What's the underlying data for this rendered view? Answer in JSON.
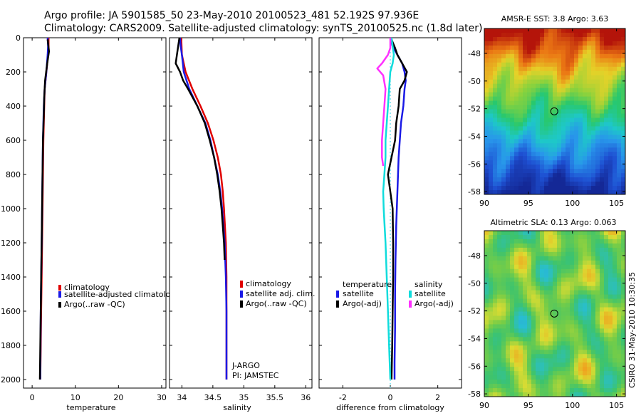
{
  "header": {
    "line1": "Argo profile: JA 5901585_50 23-May-2010 20100523_481 52.192S 97.936E",
    "line2": "Climatology: CARS2009. Satellite-adjusted climatology: synTS_20100525.nc (1.8d later)"
  },
  "credit": "CSIRO 31-May-2010 10:30:35",
  "chart_data": [
    {
      "type": "line",
      "id": "temperature",
      "xlabel": "temperature",
      "ylabel": "",
      "xlim": [
        -2,
        31
      ],
      "ylim": [
        2050,
        0
      ],
      "xticks": [
        0,
        10,
        20,
        30
      ],
      "yticks": [
        0,
        200,
        400,
        600,
        800,
        1000,
        1200,
        1400,
        1600,
        1800,
        2000
      ],
      "legend": [
        "climatology",
        "satellite-adjusted climatology",
        "Argo(..raw -QC)"
      ],
      "colors": [
        "#e00000",
        "#1a1ae6",
        "#000000"
      ],
      "series": [
        {
          "name": "climatology",
          "color": "#e00000",
          "depth": [
            0,
            50,
            100,
            200,
            300,
            400,
            600,
            800,
            1000,
            1200,
            1400,
            1600,
            1800,
            2000
          ],
          "values": [
            3.8,
            3.8,
            3.7,
            3.3,
            2.9,
            2.8,
            2.6,
            2.5,
            2.4,
            2.3,
            2.2,
            2.1,
            2.0,
            1.9
          ]
        },
        {
          "name": "satellite-adjusted climatology",
          "color": "#1a1ae6",
          "depth": [
            0,
            50,
            100,
            200,
            300,
            400,
            600,
            800,
            1000,
            1200,
            1400,
            1600,
            1800,
            2000
          ],
          "values": [
            3.6,
            3.7,
            3.6,
            3.3,
            2.9,
            2.7,
            2.5,
            2.4,
            2.3,
            2.2,
            2.1,
            2.0,
            1.95,
            1.9
          ]
        },
        {
          "name": "Argo(..raw -QC)",
          "color": "#000000",
          "depth": [
            10,
            80,
            150,
            250,
            350,
            450,
            600,
            800,
            1000,
            1200,
            1400,
            1600,
            1800,
            2000
          ],
          "values": [
            3.6,
            3.9,
            3.5,
            3.0,
            2.8,
            2.7,
            2.5,
            2.4,
            2.3,
            2.2,
            2.1,
            2.0,
            1.9,
            1.8
          ]
        }
      ]
    },
    {
      "type": "line",
      "id": "salinity",
      "xlabel": "salinity",
      "xlim": [
        33.8,
        36.1
      ],
      "ylim": [
        2050,
        0
      ],
      "xticks": [
        34,
        34.5,
        35,
        35.5,
        36
      ],
      "legend": [
        "climatology",
        "satellite adj. clim.",
        "Argo(..raw -QC)"
      ],
      "colors": [
        "#e00000",
        "#1a1ae6",
        "#000000"
      ],
      "annotations": [
        "J-ARGO",
        "PI: JAMSTEC"
      ],
      "series": [
        {
          "name": "climatology",
          "color": "#e00000",
          "depth": [
            0,
            100,
            200,
            300,
            400,
            500,
            600,
            700,
            800,
            900,
            1000,
            1200,
            1400,
            1600,
            1800,
            2000
          ],
          "values": [
            33.99,
            34.0,
            34.06,
            34.17,
            34.3,
            34.42,
            34.51,
            34.58,
            34.63,
            34.66,
            34.68,
            34.71,
            34.72,
            34.72,
            34.72,
            34.72
          ]
        },
        {
          "name": "satellite adj. clim.",
          "color": "#1a1ae6",
          "depth": [
            0,
            50,
            100,
            200,
            300,
            400,
            500,
            600,
            700,
            800,
            900,
            1000,
            1200,
            1400,
            1600,
            1800,
            2000
          ],
          "values": [
            33.97,
            33.98,
            34.0,
            34.03,
            34.12,
            34.25,
            34.38,
            34.46,
            34.52,
            34.58,
            34.62,
            34.65,
            34.69,
            34.71,
            34.72,
            34.72,
            34.72
          ]
        },
        {
          "name": "Argo(..raw -QC)",
          "color": "#000000",
          "depth": [
            0,
            100,
            150,
            200,
            250,
            300,
            400,
            500,
            600,
            700,
            800,
            900,
            1000,
            1100,
            1200,
            1300
          ],
          "values": [
            33.96,
            33.92,
            33.9,
            33.97,
            34.02,
            34.1,
            34.25,
            34.37,
            34.45,
            34.52,
            34.57,
            34.61,
            34.64,
            34.66,
            34.68,
            34.69
          ]
        }
      ]
    },
    {
      "type": "line",
      "id": "difference",
      "xlabel": "difference from climatology",
      "xlim": [
        -3.0,
        3.0
      ],
      "ylim": [
        2050,
        0
      ],
      "xticks": [
        -2,
        0,
        2
      ],
      "legend_left_title": "temperature",
      "legend_right_title": "salinity",
      "legend_left": [
        "satellite",
        "Argo(-adj)"
      ],
      "legend_right": [
        "satellite",
        "Argo(-adj)"
      ],
      "series": [
        {
          "name": "temperature satellite",
          "color": "#1a1ae6",
          "depth": [
            0,
            50,
            100,
            150,
            200,
            250,
            300,
            400,
            500,
            700,
            900,
            1100,
            1300,
            1500,
            1700,
            1900,
            2000
          ],
          "values": [
            0.0,
            0.1,
            0.3,
            0.5,
            0.6,
            0.65,
            0.6,
            0.55,
            0.45,
            0.35,
            0.3,
            0.25,
            0.22,
            0.2,
            0.2,
            0.18,
            0.18
          ]
        },
        {
          "name": "temperature Argo(-adj)",
          "color": "#000000",
          "depth": [
            10,
            60,
            100,
            150,
            200,
            250,
            300,
            400,
            500,
            600,
            700,
            800,
            900,
            1000,
            1200,
            1400,
            1600,
            1800,
            2000
          ],
          "values": [
            0.05,
            0.2,
            0.3,
            0.5,
            0.7,
            0.6,
            0.4,
            0.35,
            0.25,
            0.2,
            0.05,
            -0.1,
            0.0,
            0.1,
            0.12,
            0.12,
            0.1,
            0.08,
            0.05
          ]
        },
        {
          "name": "salinity satellite",
          "color": "#10dcdc",
          "depth": [
            0,
            50,
            100,
            150,
            200,
            300,
            400,
            500,
            600,
            700,
            800,
            900,
            1000,
            1200,
            1400,
            1600,
            1800,
            2000
          ],
          "values": [
            0.05,
            0.1,
            0.15,
            0.1,
            0.0,
            -0.05,
            -0.1,
            -0.15,
            -0.2,
            -0.2,
            -0.25,
            -0.3,
            -0.28,
            -0.2,
            -0.15,
            -0.1,
            -0.05,
            0.0
          ]
        },
        {
          "name": "salinity Argo(-adj)",
          "color": "#ff30ff",
          "depth": [
            0,
            60,
            100,
            150,
            180,
            220,
            300,
            400,
            500,
            600,
            700,
            750
          ],
          "values": [
            0.0,
            0.0,
            -0.1,
            -0.35,
            -0.55,
            -0.3,
            -0.2,
            -0.25,
            -0.3,
            -0.35,
            -0.35,
            -0.3
          ]
        }
      ]
    },
    {
      "type": "heatmap",
      "id": "sst",
      "title": "AMSR-E SST: 3.8 Argo: 3.63",
      "xticks": [
        90,
        95,
        100,
        105
      ],
      "yticks": [
        -48,
        -50,
        -52,
        -54,
        -56,
        -58
      ],
      "xlim": [
        90,
        106
      ],
      "ylim": [
        -58.2,
        -46.2
      ],
      "marker": [
        97.936,
        -52.192
      ]
    },
    {
      "type": "heatmap",
      "id": "sla",
      "title": "Altimetric SLA: 0.13 Argo: 0.063",
      "xticks": [
        90,
        95,
        100,
        105
      ],
      "yticks": [
        -48,
        -50,
        -52,
        -54,
        -56,
        -58
      ],
      "xlim": [
        90,
        106
      ],
      "ylim": [
        -58.2,
        -46.2
      ],
      "marker": [
        97.936,
        -52.192
      ]
    }
  ]
}
